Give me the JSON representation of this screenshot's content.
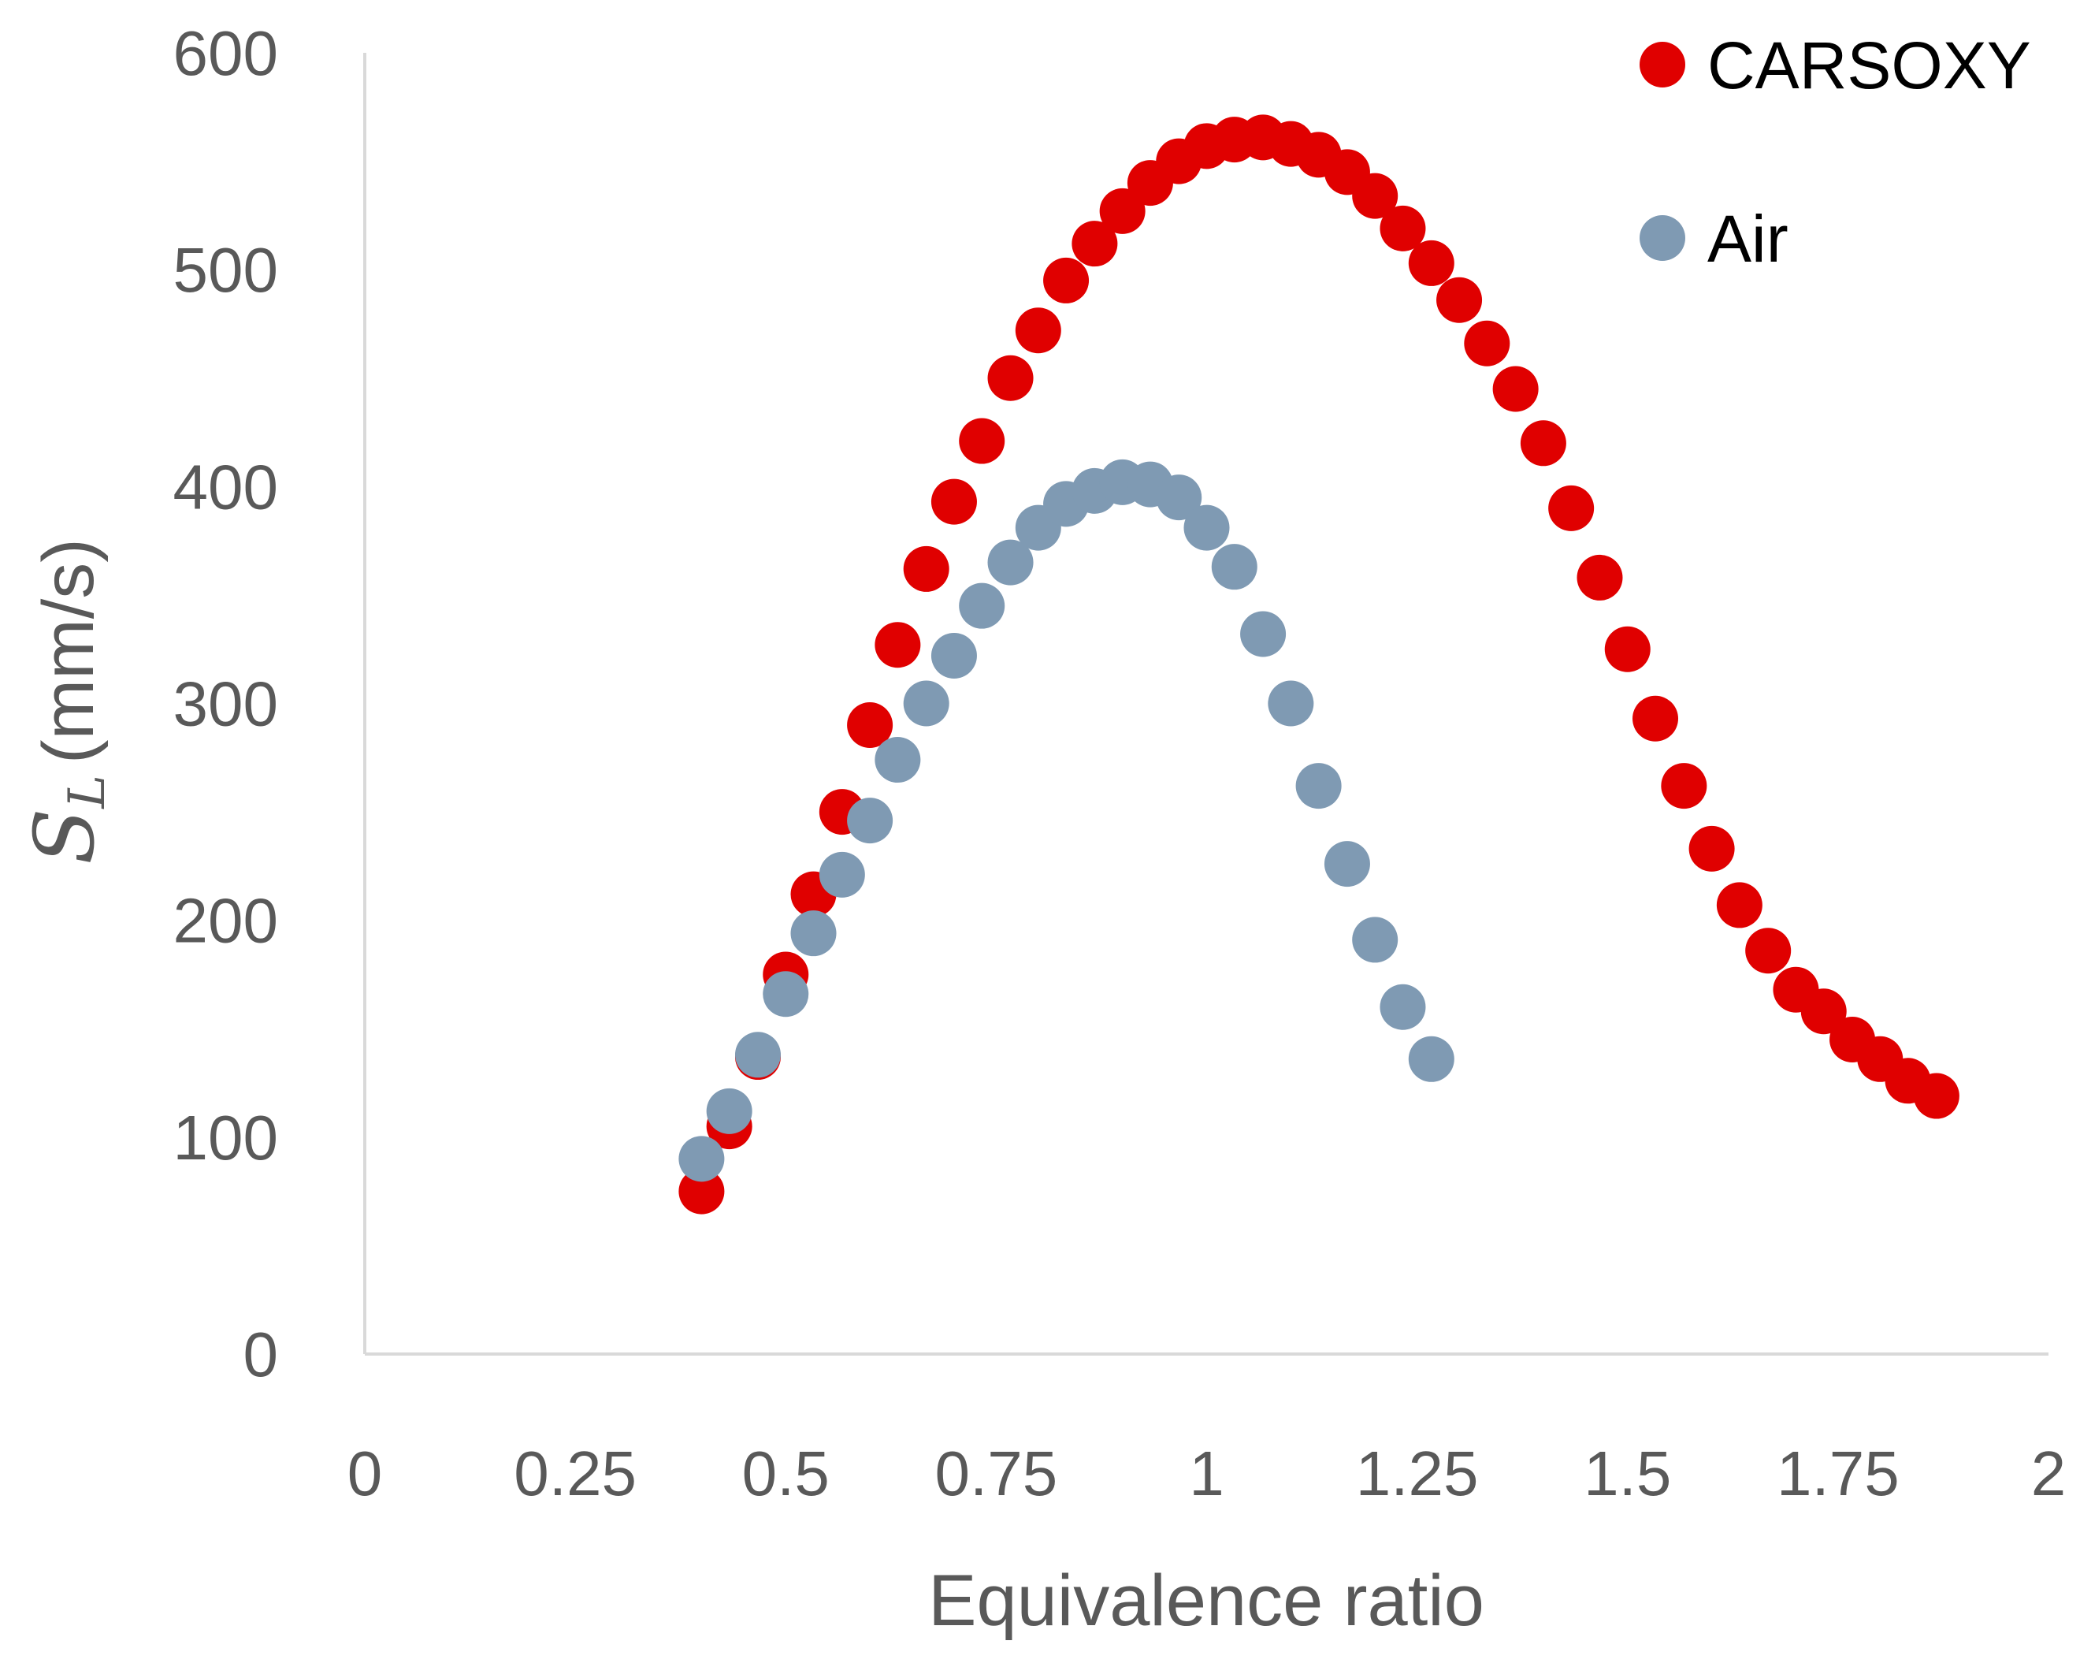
{
  "chart_data": {
    "type": "scatter",
    "title": "",
    "xlabel": "Equivalence ratio",
    "ylabel": {
      "symbol": "S",
      "subscript": "L",
      "unit": "(mm/s)"
    },
    "xlim": [
      0,
      2
    ],
    "ylim": [
      0,
      600
    ],
    "x_ticks": [
      "0",
      "0.25",
      "0.5",
      "0.75",
      "1",
      "1.25",
      "1.5",
      "1.75",
      "2"
    ],
    "y_ticks": [
      "0",
      "100",
      "200",
      "300",
      "400",
      "500",
      "600"
    ],
    "grid": false,
    "legend_position": "top-right",
    "series": [
      {
        "name": "CARSOXY",
        "color": "#e00000",
        "points": [
          [
            0.4,
            75
          ],
          [
            0.433,
            105
          ],
          [
            0.467,
            137
          ],
          [
            0.5,
            175
          ],
          [
            0.533,
            212
          ],
          [
            0.567,
            250
          ],
          [
            0.6,
            290
          ],
          [
            0.633,
            327
          ],
          [
            0.667,
            362
          ],
          [
            0.7,
            393
          ],
          [
            0.733,
            421
          ],
          [
            0.767,
            450
          ],
          [
            0.8,
            472
          ],
          [
            0.833,
            495
          ],
          [
            0.867,
            512
          ],
          [
            0.9,
            527
          ],
          [
            0.933,
            540
          ],
          [
            0.967,
            550
          ],
          [
            1.0,
            557
          ],
          [
            1.033,
            560
          ],
          [
            1.067,
            561
          ],
          [
            1.1,
            558
          ],
          [
            1.133,
            553
          ],
          [
            1.167,
            545
          ],
          [
            1.2,
            534
          ],
          [
            1.233,
            519
          ],
          [
            1.267,
            503
          ],
          [
            1.3,
            486
          ],
          [
            1.333,
            466
          ],
          [
            1.367,
            445
          ],
          [
            1.4,
            420
          ],
          [
            1.433,
            390
          ],
          [
            1.467,
            358
          ],
          [
            1.5,
            325
          ],
          [
            1.533,
            293
          ],
          [
            1.567,
            262
          ],
          [
            1.6,
            233
          ],
          [
            1.633,
            207
          ],
          [
            1.667,
            186
          ],
          [
            1.7,
            168
          ],
          [
            1.733,
            158
          ],
          [
            1.767,
            145
          ],
          [
            1.8,
            136
          ],
          [
            1.833,
            126
          ],
          [
            1.867,
            119
          ]
        ]
      },
      {
        "name": "Air",
        "color": "#7f9ab3",
        "points": [
          [
            0.4,
            90
          ],
          [
            0.433,
            112
          ],
          [
            0.467,
            138
          ],
          [
            0.5,
            166
          ],
          [
            0.533,
            194
          ],
          [
            0.567,
            221
          ],
          [
            0.6,
            246
          ],
          [
            0.633,
            274
          ],
          [
            0.667,
            300
          ],
          [
            0.7,
            322
          ],
          [
            0.733,
            345
          ],
          [
            0.767,
            365
          ],
          [
            0.8,
            381
          ],
          [
            0.833,
            392
          ],
          [
            0.867,
            398
          ],
          [
            0.9,
            402
          ],
          [
            0.933,
            401
          ],
          [
            0.967,
            395
          ],
          [
            1.0,
            381
          ],
          [
            1.033,
            363
          ],
          [
            1.067,
            332
          ],
          [
            1.1,
            300
          ],
          [
            1.133,
            262
          ],
          [
            1.167,
            226
          ],
          [
            1.2,
            191
          ],
          [
            1.233,
            160
          ],
          [
            1.267,
            136
          ]
        ]
      }
    ]
  }
}
